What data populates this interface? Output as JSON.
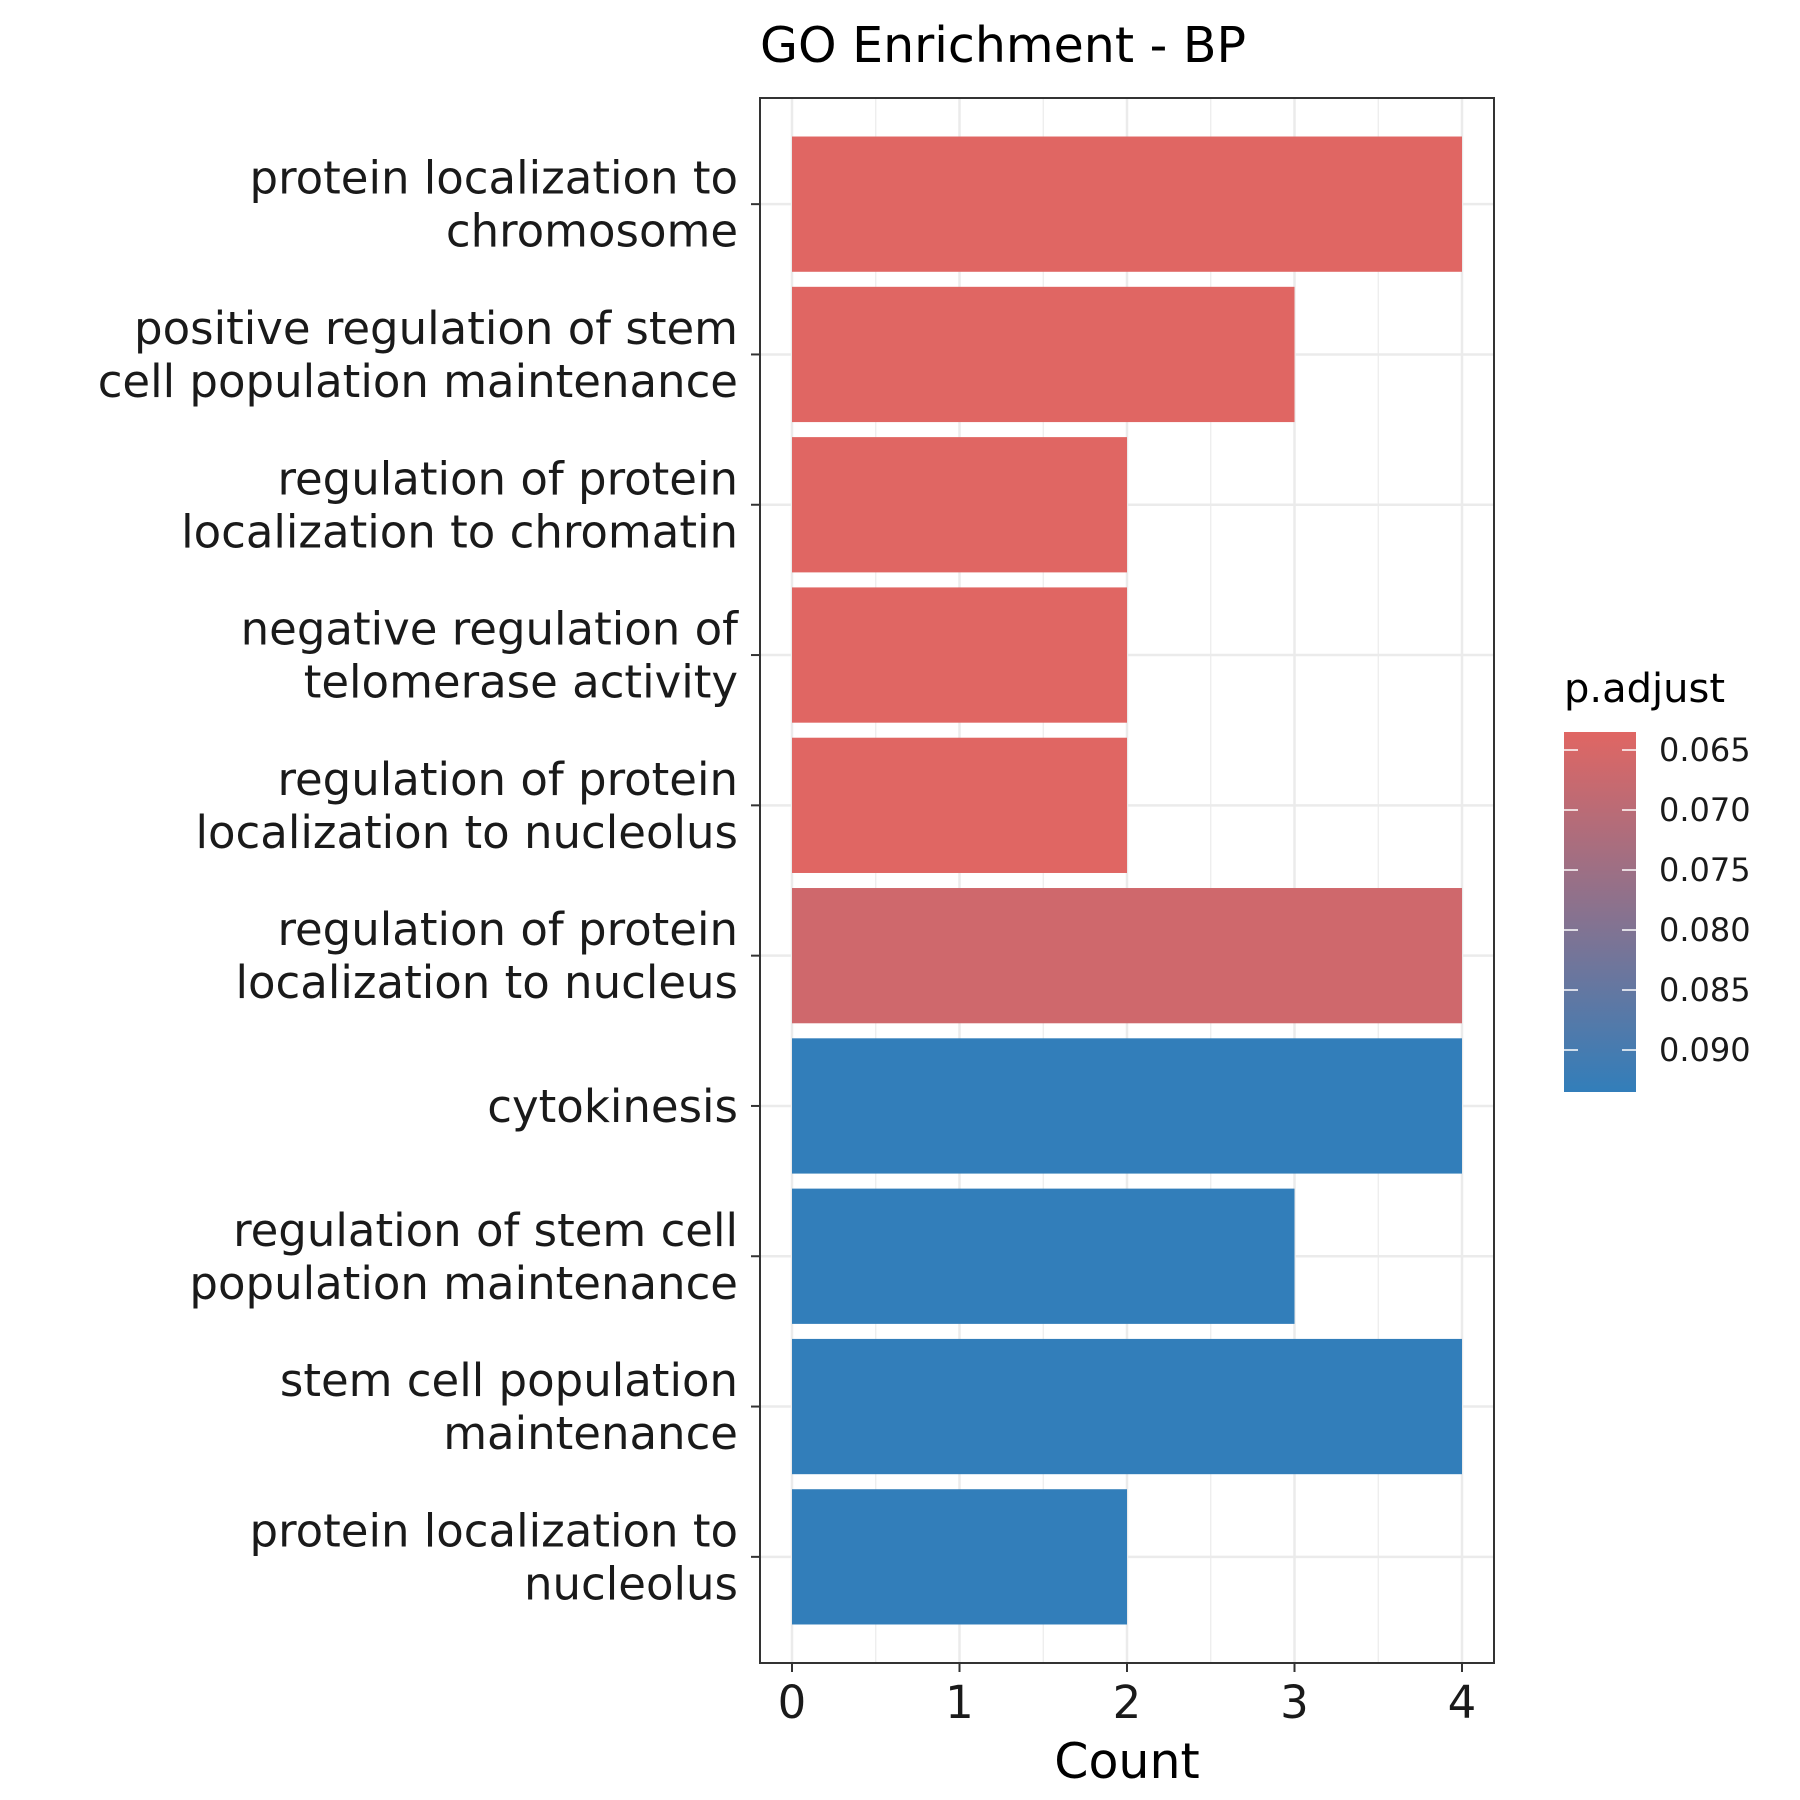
{
  "chart_data": {
    "type": "bar",
    "orientation": "horizontal",
    "title": "GO Enrichment - BP",
    "xlabel": "Count",
    "ylabel": "",
    "xlim": [
      0,
      4
    ],
    "x_ticks": [
      "0",
      "1",
      "2",
      "3",
      "4"
    ],
    "grid": true,
    "categories": [
      [
        "protein localization to",
        "chromosome"
      ],
      [
        "positive regulation of stem",
        "cell population maintenance"
      ],
      [
        "regulation of protein",
        "localization to chromatin"
      ],
      [
        "negative regulation of",
        "telomerase activity"
      ],
      [
        "regulation of protein",
        "localization to nucleolus"
      ],
      [
        "regulation of protein",
        "localization to nucleus"
      ],
      [
        "cytokinesis"
      ],
      [
        "regulation of stem cell",
        "population maintenance"
      ],
      [
        "stem cell population",
        "maintenance"
      ],
      [
        "protein localization to",
        "nucleolus"
      ]
    ],
    "values": [
      4,
      3,
      2,
      2,
      2,
      4,
      4,
      3,
      4,
      2
    ],
    "p_adjust": [
      0.0635,
      0.0635,
      0.0635,
      0.0635,
      0.0635,
      0.0665,
      0.0935,
      0.0935,
      0.0935,
      0.0935
    ],
    "legend": {
      "title": "p.adjust",
      "placement": "right",
      "ticks": [
        "0.065",
        "0.070",
        "0.075",
        "0.080",
        "0.085",
        "0.090"
      ],
      "tick_values": [
        0.065,
        0.07,
        0.075,
        0.08,
        0.085,
        0.09
      ],
      "range": [
        0.0635,
        0.0935
      ],
      "color_low": "#E06663",
      "color_high": "#327EBA"
    }
  }
}
